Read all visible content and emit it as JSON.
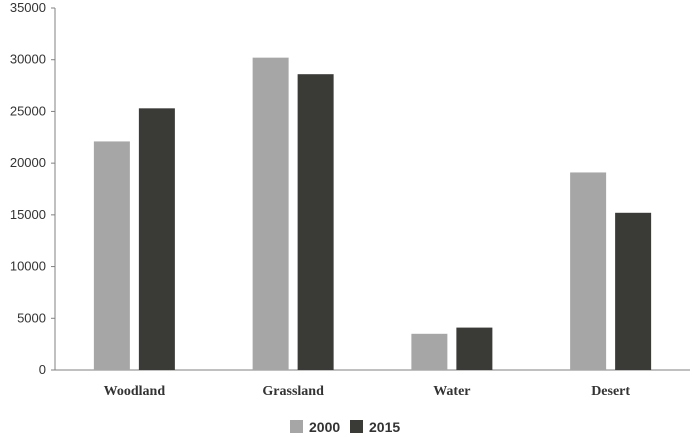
{
  "chart_data": {
    "type": "bar",
    "title": "",
    "xlabel": "",
    "ylabel": "",
    "categories": [
      "Woodland",
      "Grassland",
      "Water",
      "Desert"
    ],
    "series": [
      {
        "name": "2000",
        "values": [
          22100,
          30200,
          3500,
          19100
        ],
        "color": "#a6a6a6"
      },
      {
        "name": "2015",
        "values": [
          25300,
          28600,
          4100,
          15200
        ],
        "color": "#3a3a37"
      }
    ],
    "ylim": [
      0,
      35000
    ],
    "yticks": [
      "0",
      "5000",
      "10000",
      "15000",
      "20000",
      "25000",
      "30000",
      "35000"
    ],
    "grid": false,
    "legend_position": "bottom-center"
  }
}
